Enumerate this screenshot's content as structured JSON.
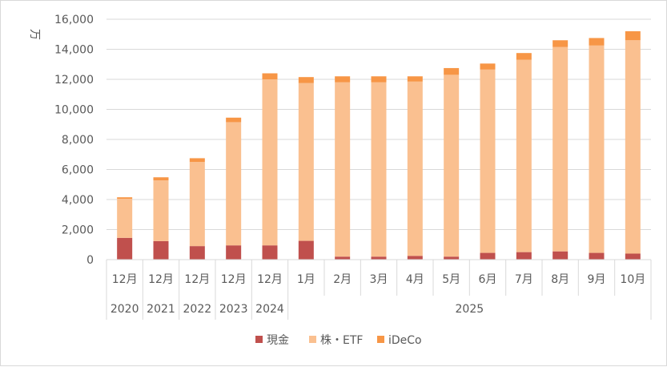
{
  "chart_data": {
    "type": "bar",
    "stacked": true,
    "ylabel": "万",
    "ylim": [
      0,
      16000
    ],
    "y_ticks": [
      "0",
      "2,000",
      "4,000",
      "6,000",
      "8,000",
      "10,000",
      "12,000",
      "14,000",
      "16,000"
    ],
    "grid": true,
    "legend_position": "bottom",
    "categories": [
      "12月",
      "12月",
      "12月",
      "12月",
      "12月",
      "1月",
      "2月",
      "3月",
      "4月",
      "5月",
      "6月",
      "7月",
      "8月",
      "9月",
      "10月"
    ],
    "year_groups": [
      {
        "label": "2020",
        "span": 1
      },
      {
        "label": "2021",
        "span": 1
      },
      {
        "label": "2022",
        "span": 1
      },
      {
        "label": "2023",
        "span": 1
      },
      {
        "label": "2024",
        "span": 1
      },
      {
        "label": "2025",
        "span": 10
      }
    ],
    "series": [
      {
        "name": "現金",
        "color": "#c0504d",
        "values": [
          1450,
          1230,
          900,
          950,
          950,
          1250,
          200,
          200,
          250,
          200,
          450,
          500,
          550,
          450,
          400
        ]
      },
      {
        "name": "株・ETF",
        "color": "#fac090",
        "values": [
          2600,
          4050,
          5600,
          8200,
          11050,
          10500,
          11600,
          11600,
          11600,
          12100,
          12200,
          12800,
          13600,
          13800,
          14200
        ]
      },
      {
        "name": "iDeCo",
        "color": "#f79646",
        "values": [
          100,
          200,
          250,
          300,
          400,
          400,
          400,
          400,
          350,
          450,
          400,
          450,
          450,
          500,
          600
        ]
      }
    ]
  }
}
